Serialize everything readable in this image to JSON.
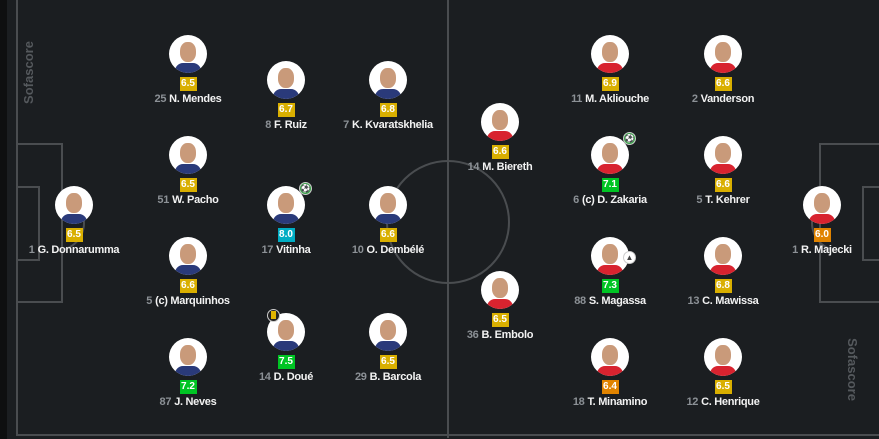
{
  "watermark": "Sofascore",
  "colors": {
    "rating_yellow": "#d9af00",
    "rating_green": "#00c424",
    "rating_teal": "#00adc4",
    "rating_orange": "#e08300",
    "pitch": "#1b1e21",
    "lines": "#4a4d50"
  },
  "home_team": {
    "players": [
      {
        "number": "1",
        "name": "G. Donnarumma",
        "rating": "6.5"
      },
      {
        "number": "25",
        "name": "N. Mendes",
        "rating": "6.5"
      },
      {
        "number": "51",
        "name": "W. Pacho",
        "rating": "6.5"
      },
      {
        "number": "5",
        "name": "(c) Marquinhos",
        "rating": "6.6"
      },
      {
        "number": "87",
        "name": "J. Neves",
        "rating": "7.2"
      },
      {
        "number": "8",
        "name": "F. Ruiz",
        "rating": "6.7"
      },
      {
        "number": "17",
        "name": "Vitinha",
        "rating": "8.0",
        "badge": "goal-icon"
      },
      {
        "number": "14",
        "name": "D. Doué",
        "rating": "7.5",
        "badge": "yellow-card-icon"
      },
      {
        "number": "7",
        "name": "K. Kvaratskhelia",
        "rating": "6.8"
      },
      {
        "number": "10",
        "name": "O. Dembélé",
        "rating": "6.6"
      },
      {
        "number": "29",
        "name": "B. Barcola",
        "rating": "6.5"
      }
    ]
  },
  "away_team": {
    "players": [
      {
        "number": "14",
        "name": "M. Biereth",
        "rating": "6.6"
      },
      {
        "number": "36",
        "name": "B. Embolo",
        "rating": "6.5"
      },
      {
        "number": "11",
        "name": "M. Akliouche",
        "rating": "6.9"
      },
      {
        "number": "6",
        "name": "(c) D. Zakaria",
        "rating": "7.1",
        "badge": "goal-icon"
      },
      {
        "number": "88",
        "name": "S. Magassa",
        "rating": "7.3",
        "badge": "assist-boot-icon"
      },
      {
        "number": "18",
        "name": "T. Minamino",
        "rating": "6.4"
      },
      {
        "number": "2",
        "name": "Vanderson",
        "rating": "6.6"
      },
      {
        "number": "5",
        "name": "T. Kehrer",
        "rating": "6.6"
      },
      {
        "number": "13",
        "name": "C. Mawissa",
        "rating": "6.8"
      },
      {
        "number": "12",
        "name": "C. Henrique",
        "rating": "6.5"
      },
      {
        "number": "1",
        "name": "R. Majecki",
        "rating": "6.0"
      }
    ]
  }
}
